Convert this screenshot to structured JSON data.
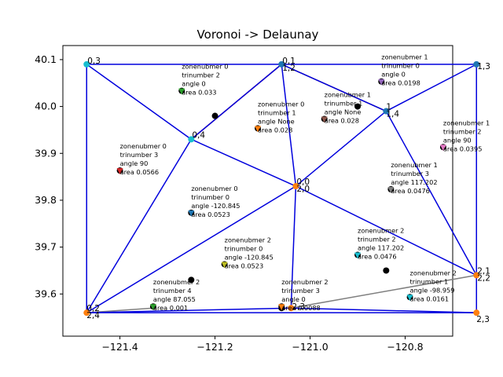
{
  "colors": {
    "delaunay": "#0000dd",
    "text": "#000000",
    "axis": "#000000"
  },
  "chart_data": {
    "type": "scatter",
    "title": "Voronoi -> Delaunay",
    "xlabel": "",
    "ylabel": "",
    "xlim": [
      -121.52,
      -120.7
    ],
    "ylim": [
      39.51,
      40.13
    ],
    "grid": false,
    "xticks": [
      -121.4,
      -121.2,
      -121.0,
      -120.8
    ],
    "xtick_labels": [
      "−121.4",
      "−121.2",
      "−121.0",
      "−120.8"
    ],
    "yticks": [
      39.6,
      39.7,
      39.8,
      39.9,
      40.0,
      40.1
    ],
    "ytick_labels": [
      "39.6",
      "39.7",
      "39.8",
      "39.9",
      "40.0",
      "40.1"
    ],
    "vertices": [
      {
        "x": -121.47,
        "y": 40.09,
        "color": "#17becf",
        "label": "0,3",
        "lx": 1,
        "ly": -1
      },
      {
        "x": -121.06,
        "y": 40.09,
        "color": "#1f77b4",
        "label": "0,1\n1,2",
        "lx": 1,
        "ly": -1
      },
      {
        "x": -120.65,
        "y": 40.09,
        "color": "#1f77b4",
        "label": "1,3",
        "lx": 1,
        "ly": 6
      },
      {
        "x": -120.84,
        "y": 39.99,
        "color": "#1f77b4",
        "label": "1\n1,4",
        "lx": 0,
        "ly": -2
      },
      {
        "x": -121.25,
        "y": 39.93,
        "color": "#17becf",
        "label": "0,4",
        "lx": 1,
        "ly": -2
      },
      {
        "x": -121.03,
        "y": 39.83,
        "color": "#ff7f0e",
        "label": "0,0\n2,0",
        "lx": 1,
        "ly": -2
      },
      {
        "x": -120.65,
        "y": 39.64,
        "color": "#ff7f0e",
        "label": "2,1\n2,2",
        "lx": 1,
        "ly": -2
      },
      {
        "x": -121.47,
        "y": 39.56,
        "color": "#ff7f0e",
        "label": "0,2\n2,4",
        "lx": 0,
        "ly": -2
      },
      {
        "x": -121.04,
        "y": 39.57,
        "color": "#ff7f0e",
        "label": "2,3",
        "lx": 1,
        "ly": 2
      },
      {
        "x": -120.65,
        "y": 39.56,
        "color": "#ff7f0e",
        "label": "2,3",
        "lx": 0,
        "ly": 12
      }
    ],
    "delaunay_edges": [
      [
        0,
        1
      ],
      [
        1,
        2
      ],
      [
        0,
        4
      ],
      [
        0,
        7
      ],
      [
        1,
        4
      ],
      [
        1,
        5
      ],
      [
        1,
        3
      ],
      [
        2,
        3
      ],
      [
        2,
        6
      ],
      [
        3,
        5
      ],
      [
        3,
        6
      ],
      [
        4,
        5
      ],
      [
        4,
        7
      ],
      [
        5,
        7
      ],
      [
        5,
        8
      ],
      [
        5,
        6
      ],
      [
        6,
        9
      ],
      [
        7,
        8
      ],
      [
        8,
        9
      ],
      [
        7,
        9
      ]
    ],
    "voronoi_edges": [
      {
        "x1": -121.25,
        "y1": 39.93,
        "x2": -121.06,
        "y2": 40.09,
        "color": "#d62728"
      },
      {
        "x1": -121.06,
        "y1": 40.09,
        "x2": -120.84,
        "y2": 39.99,
        "color": "#8c564b"
      },
      {
        "x1": -121.47,
        "y1": 39.56,
        "x2": -121.33,
        "y2": 39.57,
        "color": "#7f7f7f"
      },
      {
        "x1": -121.04,
        "y1": 39.57,
        "x2": -120.65,
        "y2": 39.64,
        "color": "#7f7f7f"
      }
    ],
    "centroids": [
      {
        "x": -121.2,
        "y": 39.98
      },
      {
        "x": -120.9,
        "y": 40.0
      },
      {
        "x": -121.25,
        "y": 39.63
      },
      {
        "x": -120.84,
        "y": 39.65
      },
      {
        "x": -121.06,
        "y": 39.57
      }
    ],
    "markers": [
      {
        "x": -121.27,
        "y": 40.03,
        "color": "#2ca02c"
      },
      {
        "x": -120.85,
        "y": 40.05,
        "color": "#9467bd"
      },
      {
        "x": -120.97,
        "y": 39.97,
        "color": "#8c564b"
      },
      {
        "x": -121.11,
        "y": 39.95,
        "color": "#ff7f0e"
      },
      {
        "x": -120.72,
        "y": 39.91,
        "color": "#e377c2"
      },
      {
        "x": -121.4,
        "y": 39.86,
        "color": "#d62728"
      },
      {
        "x": -120.83,
        "y": 39.82,
        "color": "#7f7f7f"
      },
      {
        "x": -121.25,
        "y": 39.77,
        "color": "#1f77b4"
      },
      {
        "x": -121.18,
        "y": 39.66,
        "color": "#bcbd22"
      },
      {
        "x": -120.9,
        "y": 39.68,
        "color": "#17becf"
      },
      {
        "x": -120.79,
        "y": 39.59,
        "color": "#17becf"
      },
      {
        "x": -121.33,
        "y": 39.57,
        "color": "#2ca02c"
      },
      {
        "x": -121.06,
        "y": 39.57,
        "color": "#ff7f0e"
      }
    ],
    "annotations": [
      {
        "x": -121.27,
        "y": 40.03,
        "lines": [
          "zonenubmer 0",
          "trinumber 2",
          "angle 0",
          "area 0.033"
        ]
      },
      {
        "x": -120.85,
        "y": 40.05,
        "lines": [
          "zonenubmer 1",
          "trinumber 0",
          "angle 0",
          "area 0.0198"
        ]
      },
      {
        "x": -120.97,
        "y": 39.97,
        "lines": [
          "zonenubmer 1",
          "trinumber 1",
          "angle None",
          "area 0.028"
        ]
      },
      {
        "x": -121.11,
        "y": 39.95,
        "lines": [
          "zonenubmer 0",
          "trinumber 1",
          "angle None",
          "area 0.028"
        ]
      },
      {
        "x": -120.72,
        "y": 39.91,
        "lines": [
          "zonenubmer 1",
          "trinumber 2",
          "angle 90",
          "area 0.0395"
        ]
      },
      {
        "x": -121.4,
        "y": 39.86,
        "lines": [
          "zonenubmer 0",
          "trinumber 3",
          "angle 90",
          "area 0.0566"
        ]
      },
      {
        "x": -120.83,
        "y": 39.82,
        "lines": [
          "zonenubmer 1",
          "trinumber 3",
          "angle 117.202",
          "area 0.0476"
        ]
      },
      {
        "x": -121.25,
        "y": 39.77,
        "lines": [
          "zonenubmer 0",
          "trinumber 0",
          "angle -120.845",
          "area 0.0523"
        ]
      },
      {
        "x": -121.18,
        "y": 39.66,
        "lines": [
          "zonenubmer 2",
          "trinumber 0",
          "angle -120.845",
          "area 0.0523"
        ]
      },
      {
        "x": -120.9,
        "y": 39.68,
        "lines": [
          "zonenubmer 2",
          "trinumber 2",
          "angle 117.202",
          "area 0.0476"
        ]
      },
      {
        "x": -120.79,
        "y": 39.59,
        "lines": [
          "zonenubmer 2",
          "trinumber 1",
          "angle -98.959",
          "area 0.0161"
        ]
      },
      {
        "x": -121.33,
        "y": 39.57,
        "lines": [
          "zonenubmer 2",
          "trinumber 4",
          "angle 87.055",
          "area 0.001"
        ]
      },
      {
        "x": -121.06,
        "y": 39.57,
        "lines": [
          "zonenubmer 2",
          "trinumber 3",
          "angle 0",
          "area 0.0088"
        ]
      }
    ]
  }
}
